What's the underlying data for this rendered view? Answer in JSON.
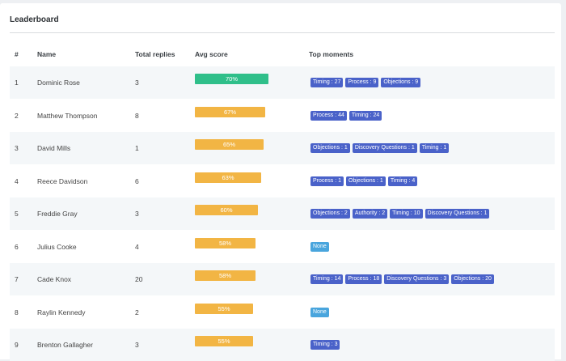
{
  "title": "Leaderboard",
  "columns": [
    "#",
    "Name",
    "Total replies",
    "Avg score",
    "Top moments"
  ],
  "rows": [
    {
      "rank": "1",
      "name": "Dominic Rose",
      "total": "3",
      "score": "70%",
      "score_value": 70,
      "top": [
        "Timing : 27",
        "Process : 9",
        "Objections : 9"
      ]
    },
    {
      "rank": "2",
      "name": "Matthew Thompson",
      "total": "8",
      "score": "67%",
      "score_value": 67,
      "top": [
        "Process : 44",
        "Timing : 24"
      ]
    },
    {
      "rank": "3",
      "name": "David Mills",
      "total": "1",
      "score": "65%",
      "score_value": 65,
      "top": [
        "Objections : 1",
        "Discovery Questions : 1",
        "Timing : 1"
      ]
    },
    {
      "rank": "4",
      "name": "Reece Davidson",
      "total": "6",
      "score": "63%",
      "score_value": 63,
      "top": [
        "Process : 1",
        "Objections : 1",
        "Timing : 4"
      ]
    },
    {
      "rank": "5",
      "name": "Freddie Gray",
      "total": "3",
      "score": "60%",
      "score_value": 60,
      "top": [
        "Objections : 2",
        "Authority : 2",
        "Timing : 10",
        "Discovery Questions : 1"
      ]
    },
    {
      "rank": "6",
      "name": "Julius Cooke",
      "total": "4",
      "score": "58%",
      "score_value": 58,
      "top": [
        "None"
      ]
    },
    {
      "rank": "7",
      "name": "Cade Knox",
      "total": "20",
      "score": "58%",
      "score_value": 58,
      "top": [
        "Timing : 14",
        "Process : 18",
        "Discovery Questions : 3",
        "Objections : 20"
      ]
    },
    {
      "rank": "8",
      "name": "Raylin Kennedy",
      "total": "2",
      "score": "55%",
      "score_value": 55,
      "top": [
        "None"
      ]
    },
    {
      "rank": "9",
      "name": "Brenton Gallagher",
      "total": "3",
      "score": "55%",
      "score_value": 55,
      "top": [
        "Timing : 3"
      ]
    }
  ],
  "colors": {
    "top_bar": "#2fbf8a",
    "other_bar": "#f2b544",
    "tag": "#4a62c9",
    "tag_none": "#49a5dd"
  }
}
